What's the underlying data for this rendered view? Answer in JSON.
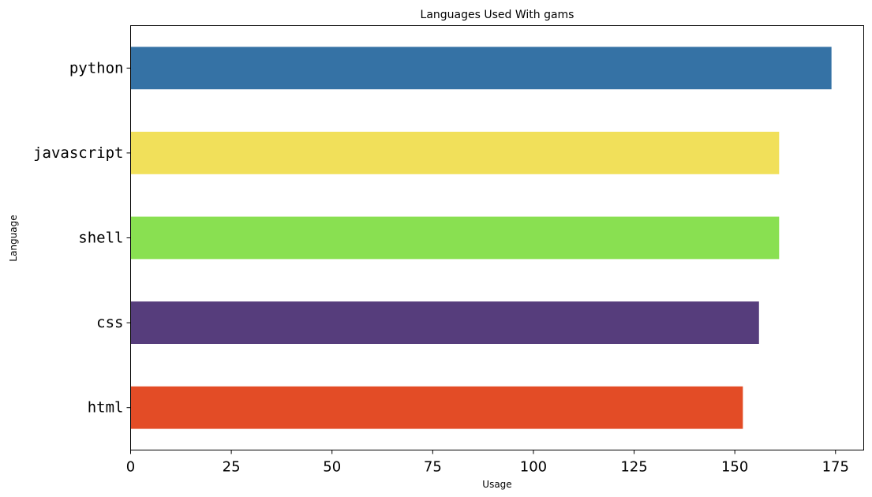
{
  "chart_data": {
    "type": "bar",
    "orientation": "horizontal",
    "title": "Languages Used With gams",
    "xlabel": "Usage",
    "ylabel": "Language",
    "categories": [
      "python",
      "javascript",
      "shell",
      "css",
      "html"
    ],
    "values": [
      174,
      161,
      161,
      156,
      152
    ],
    "colors": [
      "#3572A5",
      "#F1E05A",
      "#89E051",
      "#563D7C",
      "#E34C26"
    ],
    "xlim": [
      0,
      182
    ],
    "xticks": [
      0,
      25,
      50,
      75,
      100,
      125,
      150,
      175
    ],
    "grid": false,
    "legend": "none"
  }
}
